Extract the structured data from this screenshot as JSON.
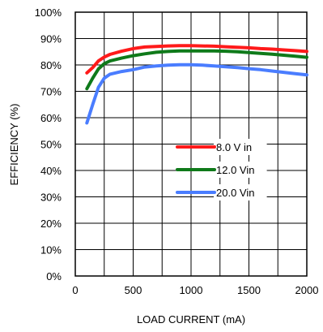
{
  "chart_data": {
    "type": "line",
    "title": "",
    "xlabel": "LOAD CURRENT (mA)",
    "ylabel": "EFFICIENCY (%)",
    "xlim": [
      0,
      2000
    ],
    "ylim": [
      0,
      100
    ],
    "xticks": [
      0,
      500,
      1000,
      1500,
      2000
    ],
    "yticks": [
      0,
      10,
      20,
      30,
      40,
      50,
      60,
      70,
      80,
      90,
      100
    ],
    "ytick_suffix": "%",
    "grid": true,
    "legend_position": "center-right",
    "series": [
      {
        "name": "8.0 V in",
        "color": "#ff1a1a",
        "x": [
          100,
          150,
          200,
          250,
          300,
          400,
          500,
          600,
          700,
          800,
          900,
          1000,
          1100,
          1200,
          1300,
          1400,
          1500,
          1600,
          1700,
          1800,
          1900,
          2000
        ],
        "y": [
          77,
          79,
          81.5,
          83,
          84,
          85.2,
          86.2,
          86.8,
          87,
          87.2,
          87.3,
          87.3,
          87.2,
          87.1,
          86.9,
          86.7,
          86.5,
          86.2,
          86,
          85.7,
          85.4,
          85.1
        ]
      },
      {
        "name": "12.0 Vin",
        "color": "#0f7a1a",
        "x": [
          100,
          150,
          200,
          250,
          300,
          400,
          500,
          600,
          700,
          800,
          900,
          1000,
          1100,
          1200,
          1300,
          1400,
          1500,
          1600,
          1700,
          1800,
          1900,
          2000
        ],
        "y": [
          71,
          75,
          78.5,
          80.5,
          81.5,
          82.6,
          83.5,
          84.2,
          84.8,
          85.1,
          85.3,
          85.3,
          85.3,
          85.3,
          85.2,
          85,
          84.7,
          84.4,
          84.1,
          83.7,
          83.3,
          82.9
        ]
      },
      {
        "name": "20.0 Vin",
        "color": "#4a7dff",
        "x": [
          100,
          150,
          200,
          250,
          300,
          400,
          500,
          600,
          700,
          800,
          900,
          1000,
          1100,
          1200,
          1300,
          1400,
          1500,
          1600,
          1700,
          1800,
          1900,
          2000
        ],
        "y": [
          58,
          65,
          71.5,
          75,
          76.5,
          77.5,
          78.2,
          79.2,
          79.6,
          79.9,
          80.1,
          80.1,
          79.9,
          79.6,
          79.3,
          79,
          78.6,
          78.2,
          77.7,
          77.2,
          76.7,
          76.2
        ]
      }
    ]
  }
}
